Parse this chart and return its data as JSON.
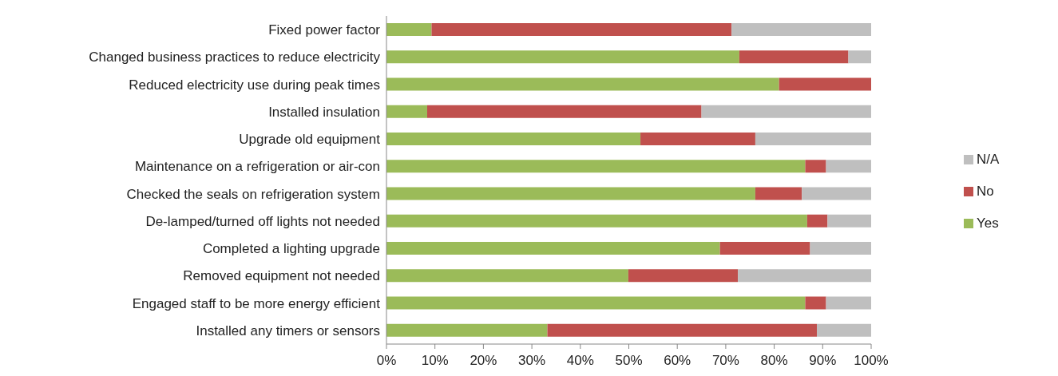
{
  "chart_data": {
    "type": "bar",
    "orientation": "horizontal",
    "stacked": true,
    "categories": [
      "Fixed power factor",
      "Changed business practices to reduce electricity",
      "Reduced electricity use during peak times",
      "Installed insulation",
      "Upgrade old equipment",
      "Maintenance on a refrigeration or air-con",
      "Checked the seals on refrigeration system",
      "De-lamped/turned off lights not needed",
      "Completed a lighting upgrade",
      "Removed equipment not needed",
      "Engaged staff to be more energy efficient",
      "Installed any timers or sensors"
    ],
    "series": [
      {
        "name": "Yes",
        "color": "#9bbb59",
        "values": [
          9.3,
          72.8,
          81,
          8.4,
          52.4,
          86.4,
          76.1,
          86.8,
          68.8,
          49.9,
          86.4,
          33.2
        ]
      },
      {
        "name": "No",
        "color": "#c0504d",
        "values": [
          61.9,
          22.5,
          19,
          56.6,
          23.7,
          4.3,
          9.6,
          4.2,
          18.6,
          22.6,
          4.3,
          55.6
        ]
      },
      {
        "name": "N/A",
        "color": "#bfbfbf",
        "values": [
          28.8,
          4.7,
          0,
          35,
          23.9,
          9.3,
          14.3,
          9,
          12.6,
          27.5,
          9.3,
          11.2
        ]
      }
    ],
    "xlim": [
      0,
      100
    ],
    "xticks": [
      {
        "value": 0,
        "label": "0%"
      },
      {
        "value": 10,
        "label": "10%"
      },
      {
        "value": 20,
        "label": "20%"
      },
      {
        "value": 30,
        "label": "30%"
      },
      {
        "value": 40,
        "label": "40%"
      },
      {
        "value": 50,
        "label": "50%"
      },
      {
        "value": 60,
        "label": "60%"
      },
      {
        "value": 70,
        "label": "70%"
      },
      {
        "value": 80,
        "label": "80%"
      },
      {
        "value": 90,
        "label": "90%"
      },
      {
        "value": 100,
        "label": "100%"
      }
    ],
    "grid": false,
    "legend": "right"
  }
}
